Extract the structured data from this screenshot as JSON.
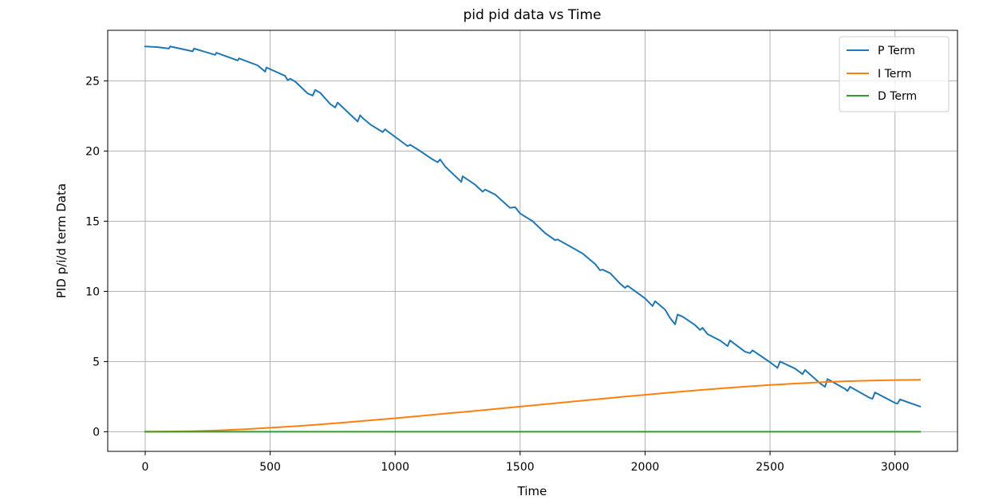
{
  "chart_data": {
    "type": "line",
    "title": "pid pid data vs Time",
    "xlabel": "Time",
    "ylabel": "PID p/i/d term Data",
    "xlim": [
      -150,
      3250
    ],
    "ylim": [
      -1.4,
      28.6
    ],
    "xticks": [
      0,
      500,
      1000,
      1500,
      2000,
      2500,
      3000
    ],
    "xtick_labels": [
      "0",
      "500",
      "1000",
      "1500",
      "2000",
      "2500",
      "3000"
    ],
    "yticks": [
      0,
      5,
      10,
      15,
      20,
      25
    ],
    "ytick_labels": [
      "0",
      "5",
      "10",
      "15",
      "20",
      "25"
    ],
    "grid": true,
    "legend_position": "top-right",
    "series": [
      {
        "name": "P Term",
        "color": "#1f77b4",
        "x": [
          0,
          50,
          95,
          100,
          190,
          195,
          280,
          285,
          370,
          375,
          450,
          480,
          485,
          560,
          570,
          580,
          600,
          650,
          670,
          680,
          700,
          740,
          760,
          770,
          850,
          860,
          870,
          900,
          950,
          960,
          970,
          1050,
          1060,
          1100,
          1150,
          1170,
          1180,
          1200,
          1250,
          1265,
          1270,
          1320,
          1350,
          1360,
          1400,
          1450,
          1460,
          1480,
          1500,
          1550,
          1600,
          1640,
          1650,
          1700,
          1750,
          1800,
          1820,
          1830,
          1860,
          1900,
          1920,
          1930,
          2000,
          2030,
          2040,
          2080,
          2100,
          2120,
          2130,
          2150,
          2200,
          2220,
          2230,
          2250,
          2300,
          2330,
          2340,
          2400,
          2420,
          2430,
          2500,
          2530,
          2540,
          2600,
          2630,
          2640,
          2700,
          2720,
          2730,
          2800,
          2810,
          2820,
          2900,
          2910,
          2920,
          3000,
          3010,
          3020,
          3100
        ],
        "y": [
          27.45,
          27.4,
          27.3,
          27.45,
          27.1,
          27.3,
          26.85,
          27.0,
          26.45,
          26.6,
          26.1,
          25.65,
          25.95,
          25.35,
          25.05,
          25.15,
          24.95,
          24.1,
          23.95,
          24.35,
          24.15,
          23.35,
          23.1,
          23.45,
          22.1,
          22.55,
          22.35,
          21.9,
          21.35,
          21.55,
          21.4,
          20.35,
          20.45,
          20.0,
          19.4,
          19.2,
          19.4,
          18.9,
          18.05,
          17.8,
          18.2,
          17.6,
          17.1,
          17.25,
          16.9,
          16.1,
          15.95,
          16.0,
          15.55,
          15.0,
          14.15,
          13.65,
          13.7,
          13.2,
          12.7,
          11.95,
          11.5,
          11.55,
          11.3,
          10.55,
          10.25,
          10.4,
          9.5,
          8.95,
          9.3,
          8.7,
          8.1,
          7.65,
          8.35,
          8.2,
          7.6,
          7.25,
          7.4,
          6.95,
          6.5,
          6.1,
          6.5,
          5.7,
          5.6,
          5.8,
          4.95,
          4.55,
          5.0,
          4.5,
          4.1,
          4.4,
          3.45,
          3.2,
          3.75,
          3.05,
          2.9,
          3.2,
          2.4,
          2.35,
          2.8,
          2.05,
          2.0,
          2.3,
          1.8
        ]
      },
      {
        "name": "I Term",
        "color": "#ff7f0e",
        "x": [
          0,
          100,
          200,
          300,
          400,
          500,
          600,
          700,
          800,
          900,
          1000,
          1100,
          1200,
          1300,
          1400,
          1500,
          1600,
          1700,
          1800,
          1900,
          2000,
          2100,
          2200,
          2300,
          2400,
          2500,
          2600,
          2700,
          2800,
          2900,
          3000,
          3100
        ],
        "y": [
          0.0,
          0.01,
          0.04,
          0.1,
          0.18,
          0.28,
          0.39,
          0.52,
          0.66,
          0.81,
          0.96,
          1.12,
          1.29,
          1.45,
          1.62,
          1.79,
          1.96,
          2.13,
          2.3,
          2.47,
          2.63,
          2.79,
          2.94,
          3.08,
          3.21,
          3.33,
          3.43,
          3.52,
          3.59,
          3.64,
          3.68,
          3.7
        ]
      },
      {
        "name": "D Term",
        "color": "#2ca02c",
        "x": [
          0,
          3100
        ],
        "y": [
          0.0,
          0.0
        ]
      }
    ]
  }
}
